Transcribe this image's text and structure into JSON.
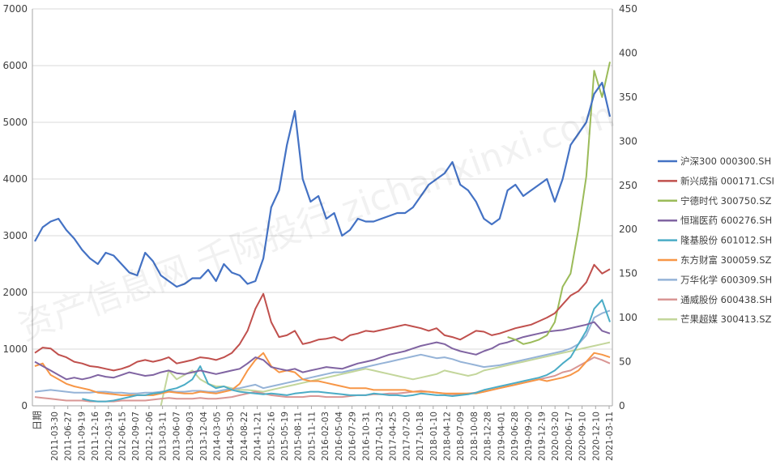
{
  "chart_data": {
    "type": "line",
    "watermark": "资产信息网 千际投行 zichanxinxi.com",
    "xlabel": "日期",
    "y_left": {
      "min": 0,
      "max": 7000,
      "ticks": [
        "0",
        "1000",
        "2000",
        "3000",
        "4000",
        "5000",
        "6000",
        "7000"
      ]
    },
    "y_right": {
      "min": 0,
      "max": 450,
      "ticks": [
        "0",
        "50",
        "100",
        "150",
        "200",
        "250",
        "300",
        "350",
        "400",
        "450"
      ]
    },
    "x_ticks": [
      "2011-03-30",
      "2011-06-27",
      "2011-09-19",
      "2011-12-16",
      "2012-03-19",
      "2012-06-15",
      "2012-09-07",
      "2012-12-06",
      "2013-03-11",
      "2013-06-07",
      "2013-09-03",
      "2013-12-04",
      "2014-03-05",
      "2014-05-30",
      "2014-08-22",
      "2014-11-21",
      "2015-02-16",
      "2015-05-19",
      "2015-08-11",
      "2015-11-11",
      "2016-02-03",
      "2016-05-04",
      "2016-07-29",
      "2016-10-31",
      "2017-01-23",
      "2017-04-25",
      "2017-07-20",
      "2017-10-18",
      "2018-01-10",
      "2018-04-12",
      "2018-07-09",
      "2018-10-08",
      "2018-12-28",
      "2019-04-01",
      "2019-06-28",
      "2019-09-20",
      "2019-12-19",
      "2020-03-20",
      "2020-06-17",
      "2020-09-10",
      "2020-12-10",
      "2021-03-11"
    ],
    "grid": true,
    "legend_position": "right",
    "series": [
      {
        "name": "沪深300 000300.SH",
        "axis": "left",
        "color": "#4472C4",
        "values": [
          2900,
          3150,
          3250,
          3300,
          3100,
          2950,
          2750,
          2600,
          2500,
          2700,
          2650,
          2500,
          2350,
          2300,
          2700,
          2550,
          2300,
          2200,
          2100,
          2150,
          2250,
          2250,
          2400,
          2200,
          2500,
          2350,
          2300,
          2150,
          2200,
          2600,
          3500,
          3800,
          4600,
          5200,
          4000,
          3600,
          3700,
          3300,
          3400,
          3000,
          3100,
          3300,
          3250,
          3250,
          3300,
          3350,
          3400,
          3400,
          3500,
          3700,
          3900,
          4000,
          4100,
          4300,
          3900,
          3800,
          3600,
          3300,
          3200,
          3300,
          3800,
          3900,
          3700,
          3800,
          3900,
          4000,
          3600,
          4000,
          4600,
          4800,
          5000,
          5500,
          5700,
          5100
        ]
      },
      {
        "name": "新兴成指 000171.CSI",
        "axis": "right",
        "color": "#C0504D",
        "values": [
          60,
          66,
          65,
          58,
          55,
          50,
          48,
          45,
          44,
          42,
          40,
          42,
          45,
          50,
          52,
          50,
          52,
          55,
          48,
          50,
          52,
          55,
          54,
          52,
          55,
          60,
          70,
          85,
          110,
          127,
          95,
          78,
          80,
          85,
          70,
          72,
          75,
          76,
          78,
          74,
          80,
          82,
          85,
          84,
          86,
          88,
          90,
          92,
          90,
          88,
          85,
          88,
          80,
          78,
          75,
          80,
          85,
          84,
          80,
          82,
          85,
          88,
          90,
          92,
          96,
          100,
          105,
          115,
          125,
          130,
          140,
          160,
          150,
          155
        ]
      },
      {
        "name": "宁德时代 300750.SZ",
        "axis": "right",
        "color": "#9BBB59",
        "values": [
          null,
          null,
          null,
          null,
          null,
          null,
          null,
          null,
          null,
          null,
          null,
          null,
          null,
          null,
          null,
          null,
          null,
          null,
          null,
          null,
          null,
          null,
          null,
          null,
          null,
          null,
          null,
          null,
          null,
          null,
          null,
          null,
          null,
          null,
          null,
          null,
          null,
          null,
          null,
          null,
          null,
          null,
          null,
          null,
          null,
          null,
          null,
          null,
          null,
          null,
          null,
          null,
          null,
          null,
          null,
          null,
          null,
          null,
          null,
          null,
          78,
          75,
          70,
          72,
          75,
          80,
          95,
          135,
          150,
          200,
          260,
          380,
          350,
          390
        ]
      },
      {
        "name": "恒瑞医药 600276.SH",
        "axis": "right",
        "color": "#8064A2",
        "values": [
          50,
          45,
          40,
          35,
          30,
          32,
          30,
          32,
          35,
          33,
          32,
          35,
          38,
          36,
          34,
          35,
          38,
          40,
          37,
          36,
          38,
          40,
          38,
          36,
          38,
          40,
          42,
          48,
          55,
          52,
          44,
          42,
          40,
          42,
          38,
          40,
          42,
          44,
          43,
          42,
          45,
          48,
          50,
          52,
          55,
          58,
          60,
          62,
          65,
          68,
          70,
          72,
          70,
          65,
          62,
          60,
          58,
          62,
          65,
          70,
          72,
          75,
          78,
          80,
          82,
          84,
          85,
          86,
          88,
          90,
          92,
          95,
          85,
          82
        ]
      },
      {
        "name": "隆基股份 601012.SH",
        "axis": "right",
        "color": "#4BACC6",
        "values": [
          null,
          null,
          null,
          null,
          null,
          null,
          8,
          6,
          5,
          5,
          6,
          8,
          10,
          12,
          12,
          14,
          15,
          18,
          20,
          24,
          30,
          45,
          25,
          20,
          22,
          18,
          16,
          15,
          14,
          13,
          14,
          13,
          12,
          14,
          15,
          16,
          16,
          15,
          14,
          13,
          12,
          12,
          12,
          14,
          13,
          12,
          12,
          11,
          12,
          14,
          13,
          12,
          12,
          11,
          12,
          13,
          15,
          18,
          20,
          22,
          24,
          26,
          28,
          30,
          32,
          35,
          40,
          48,
          55,
          70,
          85,
          110,
          120,
          95
        ]
      },
      {
        "name": "东方财富 300059.SZ",
        "axis": "right",
        "color": "#F79646",
        "values": [
          45,
          48,
          35,
          30,
          25,
          22,
          20,
          18,
          15,
          14,
          13,
          12,
          12,
          12,
          12,
          12,
          14,
          16,
          15,
          14,
          14,
          16,
          15,
          14,
          16,
          18,
          25,
          40,
          52,
          60,
          45,
          38,
          40,
          38,
          30,
          28,
          28,
          26,
          24,
          22,
          20,
          20,
          20,
          18,
          18,
          18,
          18,
          18,
          16,
          16,
          16,
          15,
          14,
          14,
          14,
          14,
          14,
          16,
          18,
          20,
          22,
          24,
          26,
          28,
          30,
          28,
          30,
          32,
          35,
          40,
          50,
          60,
          58,
          55
        ]
      },
      {
        "name": "万华化学 600309.SH",
        "axis": "right",
        "color": "#95B3D7",
        "values": [
          16,
          17,
          18,
          17,
          16,
          15,
          15,
          15,
          16,
          16,
          15,
          15,
          14,
          14,
          15,
          15,
          16,
          17,
          16,
          16,
          17,
          17,
          16,
          16,
          18,
          19,
          20,
          22,
          24,
          20,
          22,
          24,
          26,
          28,
          30,
          32,
          34,
          36,
          38,
          38,
          40,
          42,
          44,
          46,
          48,
          50,
          52,
          54,
          56,
          58,
          56,
          54,
          55,
          53,
          50,
          48,
          46,
          44,
          45,
          46,
          48,
          50,
          52,
          54,
          56,
          58,
          60,
          62,
          65,
          70,
          80,
          100,
          105,
          108
        ]
      },
      {
        "name": "通威股份 600438.SH",
        "axis": "right",
        "color": "#D99694",
        "values": [
          10,
          9,
          8,
          7,
          6,
          6,
          6,
          5,
          5,
          5,
          5,
          6,
          6,
          6,
          6,
          7,
          8,
          9,
          8,
          8,
          8,
          9,
          8,
          8,
          9,
          10,
          12,
          14,
          16,
          14,
          12,
          11,
          10,
          10,
          10,
          11,
          11,
          10,
          10,
          10,
          11,
          12,
          12,
          13,
          13,
          14,
          14,
          15,
          16,
          17,
          16,
          15,
          14,
          13,
          13,
          14,
          15,
          16,
          18,
          20,
          22,
          24,
          26,
          28,
          30,
          32,
          34,
          38,
          40,
          45,
          50,
          55,
          52,
          48
        ]
      },
      {
        "name": "芒果超媒 300413.SZ",
        "axis": "right",
        "color": "#C3D69B",
        "values": [
          null,
          null,
          null,
          null,
          null,
          null,
          null,
          null,
          null,
          null,
          null,
          null,
          null,
          null,
          null,
          null,
          0,
          40,
          30,
          35,
          40,
          30,
          25,
          22,
          22,
          20,
          18,
          18,
          17,
          16,
          18,
          20,
          22,
          24,
          26,
          28,
          30,
          32,
          34,
          36,
          38,
          40,
          42,
          40,
          38,
          36,
          34,
          32,
          30,
          32,
          34,
          36,
          40,
          38,
          36,
          34,
          36,
          40,
          42,
          44,
          46,
          48,
          50,
          52,
          54,
          56,
          58,
          60,
          62,
          64,
          66,
          68,
          70,
          72
        ]
      }
    ]
  }
}
